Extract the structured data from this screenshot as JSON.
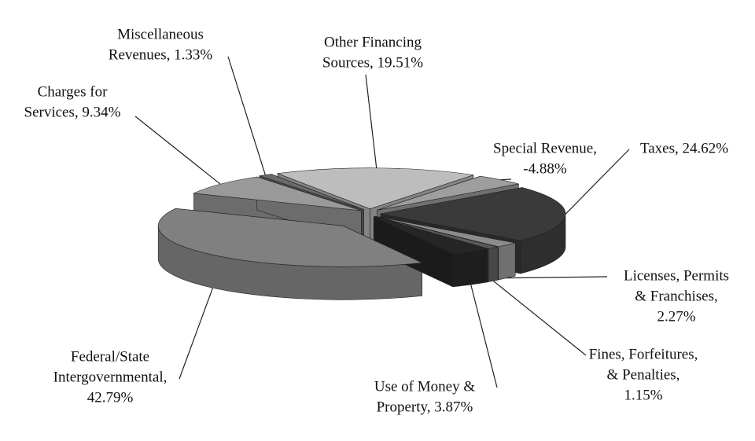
{
  "chart_data": {
    "type": "pie",
    "values": [
      24.62,
      2.27,
      1.15,
      3.87,
      42.79,
      9.34,
      1.33,
      19.51,
      -4.88
    ],
    "value_labels": [
      [
        "Taxes, 24.62%"
      ],
      [
        "Licenses, Permits",
        "& Franchises,",
        "2.27%"
      ],
      [
        "Fines, Forfeitures,",
        "& Penalties,",
        "1.15%"
      ],
      [
        "Use of Money &",
        "Property, 3.87%"
      ],
      [
        "Federal/State",
        "Intergovernmental,",
        "42.79%"
      ],
      [
        "Charges for",
        "Services, 9.34%"
      ],
      [
        "Miscellaneous",
        "Revenues, 1.33%"
      ],
      [
        "Other Financing",
        "Sources, 19.51%"
      ],
      [
        "Special Revenue,",
        "-4.88%"
      ]
    ],
    "colors": [
      "#3a3a3a",
      "#8c8c8c",
      "#5a5a5a",
      "#262626",
      "#808080",
      "#9a9a9a",
      "#6a6a6a",
      "#bdbdbd",
      "#9e9e9e"
    ]
  }
}
